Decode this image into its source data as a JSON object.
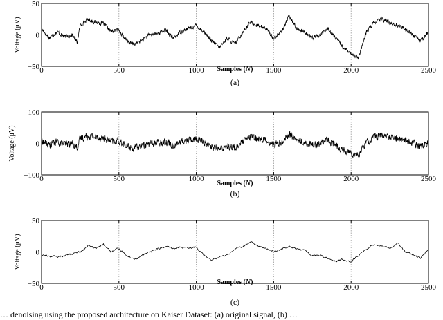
{
  "chart_data": [
    {
      "type": "line",
      "caption": "(a)",
      "xlabel": "Samples (N)",
      "ylabel": "Voltage (μV)",
      "xlim": [
        0,
        2500
      ],
      "ylim": [
        -50,
        50
      ],
      "xticks": [
        0,
        500,
        1000,
        1500,
        2000,
        2500
      ],
      "yticks": [
        -50,
        0,
        50
      ],
      "grid": "vertical-dotted",
      "series": [
        {
          "values": [
            [
              0,
              10
            ],
            [
              50,
              -5
            ],
            [
              100,
              5
            ],
            [
              150,
              -3
            ],
            [
              200,
              0
            ],
            [
              230,
              -12
            ],
            [
              250,
              15
            ],
            [
              300,
              25
            ],
            [
              350,
              20
            ],
            [
              400,
              18
            ],
            [
              450,
              5
            ],
            [
              500,
              8
            ],
            [
              550,
              -10
            ],
            [
              600,
              -15
            ],
            [
              650,
              -8
            ],
            [
              700,
              0
            ],
            [
              750,
              2
            ],
            [
              800,
              8
            ],
            [
              850,
              -5
            ],
            [
              900,
              5
            ],
            [
              950,
              10
            ],
            [
              1000,
              15
            ],
            [
              1050,
              5
            ],
            [
              1100,
              -10
            ],
            [
              1150,
              -20
            ],
            [
              1200,
              -5
            ],
            [
              1250,
              -15
            ],
            [
              1300,
              5
            ],
            [
              1350,
              20
            ],
            [
              1400,
              15
            ],
            [
              1450,
              10
            ],
            [
              1500,
              -5
            ],
            [
              1550,
              5
            ],
            [
              1600,
              30
            ],
            [
              1650,
              10
            ],
            [
              1700,
              5
            ],
            [
              1750,
              -5
            ],
            [
              1800,
              0
            ],
            [
              1850,
              10
            ],
            [
              1900,
              -5
            ],
            [
              1950,
              -20
            ],
            [
              2000,
              -30
            ],
            [
              2050,
              -35
            ],
            [
              2100,
              5
            ],
            [
              2150,
              20
            ],
            [
              2200,
              25
            ],
            [
              2250,
              20
            ],
            [
              2300,
              15
            ],
            [
              2350,
              10
            ],
            [
              2400,
              0
            ],
            [
              2450,
              -10
            ],
            [
              2500,
              5
            ]
          ]
        }
      ]
    },
    {
      "type": "line",
      "caption": "(b)",
      "xlabel": "Samples (N)",
      "ylabel": "Voltage (μV)",
      "xlim": [
        0,
        2500
      ],
      "ylim": [
        -100,
        100
      ],
      "xticks": [
        0,
        500,
        1000,
        1500,
        2000,
        2500
      ],
      "yticks": [
        -100,
        0,
        100
      ],
      "grid": "vertical-dotted",
      "series": [
        {
          "values": [
            [
              0,
              10
            ],
            [
              50,
              -5
            ],
            [
              100,
              5
            ],
            [
              150,
              -3
            ],
            [
              200,
              0
            ],
            [
              230,
              -12
            ],
            [
              250,
              15
            ],
            [
              300,
              25
            ],
            [
              350,
              20
            ],
            [
              400,
              18
            ],
            [
              450,
              5
            ],
            [
              500,
              8
            ],
            [
              550,
              -10
            ],
            [
              600,
              -15
            ],
            [
              650,
              -8
            ],
            [
              700,
              0
            ],
            [
              750,
              2
            ],
            [
              800,
              8
            ],
            [
              850,
              -5
            ],
            [
              900,
              5
            ],
            [
              950,
              10
            ],
            [
              1000,
              15
            ],
            [
              1050,
              5
            ],
            [
              1100,
              -10
            ],
            [
              1150,
              -20
            ],
            [
              1200,
              -5
            ],
            [
              1250,
              -15
            ],
            [
              1300,
              5
            ],
            [
              1350,
              20
            ],
            [
              1400,
              15
            ],
            [
              1450,
              10
            ],
            [
              1500,
              -5
            ],
            [
              1550,
              5
            ],
            [
              1600,
              30
            ],
            [
              1650,
              10
            ],
            [
              1700,
              5
            ],
            [
              1750,
              -5
            ],
            [
              1800,
              0
            ],
            [
              1850,
              10
            ],
            [
              1900,
              -5
            ],
            [
              1950,
              -20
            ],
            [
              2000,
              -30
            ],
            [
              2050,
              -35
            ],
            [
              2100,
              5
            ],
            [
              2150,
              20
            ],
            [
              2200,
              25
            ],
            [
              2250,
              20
            ],
            [
              2300,
              15
            ],
            [
              2350,
              10
            ],
            [
              2400,
              0
            ],
            [
              2450,
              -10
            ],
            [
              2500,
              5
            ]
          ]
        }
      ]
    },
    {
      "type": "line",
      "caption": "(c)",
      "xlabel": "Samples (N)",
      "ylabel": "Voltage (μV)",
      "xlim": [
        0,
        2500
      ],
      "ylim": [
        -50,
        50
      ],
      "xticks": [
        0,
        500,
        1000,
        1500,
        2000,
        2500
      ],
      "yticks": [
        -50,
        0,
        50
      ],
      "grid": "vertical-dotted",
      "series": [
        {
          "values": [
            [
              0,
              -5
            ],
            [
              100,
              -8
            ],
            [
              200,
              -3
            ],
            [
              250,
              0
            ],
            [
              300,
              10
            ],
            [
              350,
              5
            ],
            [
              400,
              12
            ],
            [
              450,
              0
            ],
            [
              500,
              5
            ],
            [
              550,
              -5
            ],
            [
              600,
              -12
            ],
            [
              650,
              -5
            ],
            [
              700,
              0
            ],
            [
              750,
              5
            ],
            [
              800,
              8
            ],
            [
              850,
              5
            ],
            [
              900,
              8
            ],
            [
              950,
              5
            ],
            [
              1000,
              8
            ],
            [
              1050,
              -5
            ],
            [
              1100,
              -12
            ],
            [
              1150,
              -8
            ],
            [
              1200,
              -5
            ],
            [
              1250,
              5
            ],
            [
              1300,
              8
            ],
            [
              1350,
              15
            ],
            [
              1400,
              10
            ],
            [
              1450,
              5
            ],
            [
              1500,
              0
            ],
            [
              1550,
              5
            ],
            [
              1600,
              10
            ],
            [
              1650,
              5
            ],
            [
              1700,
              2
            ],
            [
              1750,
              -5
            ],
            [
              1800,
              -5
            ],
            [
              1850,
              -10
            ],
            [
              1900,
              -15
            ],
            [
              1950,
              -12
            ],
            [
              2000,
              -15
            ],
            [
              2050,
              -5
            ],
            [
              2100,
              5
            ],
            [
              2150,
              12
            ],
            [
              2200,
              10
            ],
            [
              2250,
              5
            ],
            [
              2300,
              15
            ],
            [
              2350,
              0
            ],
            [
              2400,
              -5
            ],
            [
              2450,
              -10
            ],
            [
              2500,
              5
            ]
          ]
        }
      ]
    }
  ],
  "footer_text": "… denoising using the proposed architecture on Kaiser Dataset: (a) original signal, (b) …"
}
